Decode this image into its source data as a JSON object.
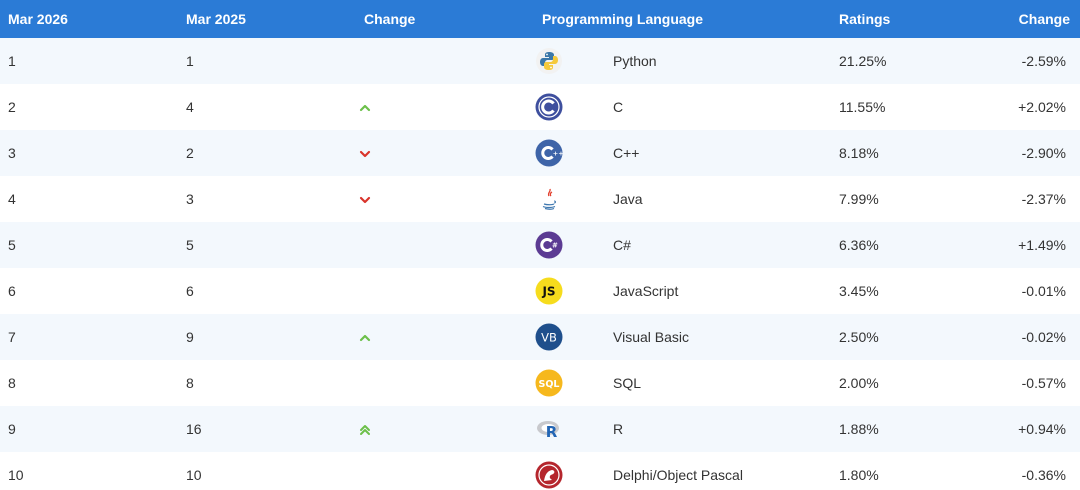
{
  "header": {
    "col_current": "Mar 2026",
    "col_previous": "Mar 2025",
    "col_change": "Change",
    "col_language": "Programming Language",
    "col_ratings": "Ratings",
    "col_delta": "Change"
  },
  "colors": {
    "header_bg": "#2b7bd6",
    "arrow_up": "#6cc04a",
    "arrow_down": "#d9342b"
  },
  "rows": [
    {
      "cur": "1",
      "prev": "1",
      "trend": "none",
      "icon": "python-logo-icon",
      "name": "Python",
      "rating": "21.25%",
      "delta": "-2.59%"
    },
    {
      "cur": "2",
      "prev": "4",
      "trend": "up",
      "icon": "c-logo-icon",
      "name": "C",
      "rating": "11.55%",
      "delta": "+2.02%"
    },
    {
      "cur": "3",
      "prev": "2",
      "trend": "down",
      "icon": "cpp-logo-icon",
      "name": "C++",
      "rating": "8.18%",
      "delta": "-2.90%"
    },
    {
      "cur": "4",
      "prev": "3",
      "trend": "down",
      "icon": "java-logo-icon",
      "name": "Java",
      "rating": "7.99%",
      "delta": "-2.37%"
    },
    {
      "cur": "5",
      "prev": "5",
      "trend": "none",
      "icon": "csharp-logo-icon",
      "name": "C#",
      "rating": "6.36%",
      "delta": "+1.49%"
    },
    {
      "cur": "6",
      "prev": "6",
      "trend": "none",
      "icon": "javascript-logo-icon",
      "name": "JavaScript",
      "rating": "3.45%",
      "delta": "-0.01%"
    },
    {
      "cur": "7",
      "prev": "9",
      "trend": "up",
      "icon": "visual-basic-logo-icon",
      "name": "Visual Basic",
      "rating": "2.50%",
      "delta": "-0.02%"
    },
    {
      "cur": "8",
      "prev": "8",
      "trend": "none",
      "icon": "sql-logo-icon",
      "name": "SQL",
      "rating": "2.00%",
      "delta": "-0.57%"
    },
    {
      "cur": "9",
      "prev": "16",
      "trend": "double-up",
      "icon": "r-logo-icon",
      "name": "R",
      "rating": "1.88%",
      "delta": "+0.94%"
    },
    {
      "cur": "10",
      "prev": "10",
      "trend": "none",
      "icon": "delphi-logo-icon",
      "name": "Delphi/Object Pascal",
      "rating": "1.80%",
      "delta": "-0.36%"
    }
  ]
}
